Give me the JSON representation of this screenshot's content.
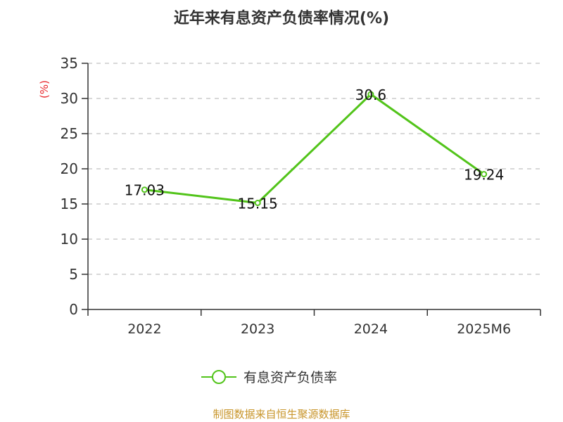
{
  "chart_data": {
    "type": "line",
    "title": "近年来有息资产负债率情况(%)",
    "ylabel": "(%)",
    "xlabel": "",
    "categories": [
      "2022",
      "2023",
      "2024",
      "2025M6"
    ],
    "series": [
      {
        "name": "有息资产负债率",
        "values": [
          17.03,
          15.15,
          30.6,
          19.24
        ],
        "labels": [
          "17.03",
          "15.15",
          "30.6",
          "19.24"
        ],
        "color": "#52c41a"
      }
    ],
    "ylim": [
      0,
      35
    ],
    "yticks": [
      0,
      5,
      10,
      15,
      20,
      25,
      30,
      35
    ],
    "grid": true,
    "legend": "bottom-center"
  },
  "source": "制图数据来自恒生聚源数据库",
  "colors": {
    "ylabel": "#e8262b",
    "grid": "#cccccc",
    "axis": "#333333"
  }
}
